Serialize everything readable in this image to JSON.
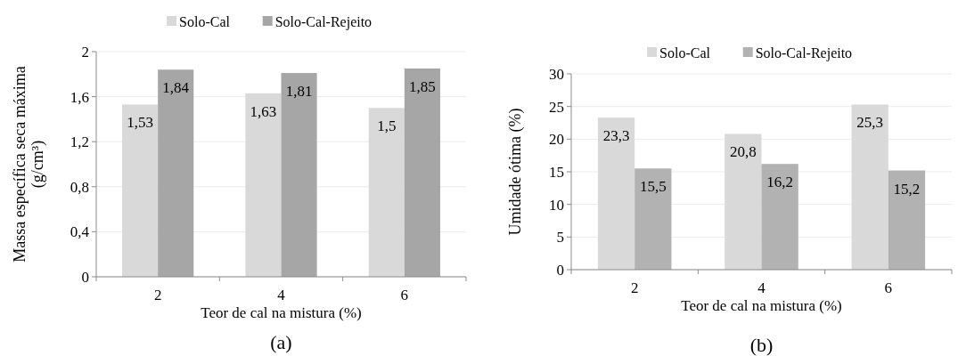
{
  "chart_data": [
    {
      "type": "bar",
      "xlabel": "Teor de cal na mistura (%)",
      "ylabel": "Massa específica seca máxima (g/cm³)",
      "categories": [
        "2",
        "4",
        "6"
      ],
      "series": [
        {
          "name": "Solo-Cal",
          "color": "#d9d9d9",
          "values": [
            1.53,
            1.63,
            1.5
          ],
          "value_labels": [
            "1,53",
            "1,63",
            "1,5"
          ]
        },
        {
          "name": "Solo-Cal-Rejeito",
          "color": "#a6a6a6",
          "values": [
            1.84,
            1.81,
            1.85
          ],
          "value_labels": [
            "1,84",
            "1,81",
            "1,85"
          ]
        }
      ],
      "ylim": [
        0,
        2
      ],
      "yticks": [
        0,
        {
          "value": 0.4,
          "label": "0,4"
        },
        {
          "value": 0.8,
          "label": "0,8"
        },
        {
          "value": 1.2,
          "label": "1,2"
        },
        {
          "value": 1.6,
          "label": "1,6"
        },
        2
      ],
      "grid": "y",
      "legend": "top",
      "annotations": [
        "(a)"
      ]
    },
    {
      "type": "bar",
      "xlabel": "Teor de cal na mistura (%)",
      "ylabel": "Umidade ótima (%)",
      "categories": [
        "2",
        "4",
        "6"
      ],
      "series": [
        {
          "name": "Solo-Cal",
          "color": "#d9d9d9",
          "values": [
            23.3,
            20.8,
            25.3
          ],
          "value_labels": [
            "23,3",
            "20,8",
            "25,3"
          ]
        },
        {
          "name": "Solo-Cal-Rejeito",
          "color": "#b2b2b2",
          "values": [
            15.5,
            16.2,
            15.2
          ],
          "value_labels": [
            "15,5",
            "16,2",
            "15,2"
          ]
        }
      ],
      "ylim": [
        0,
        30
      ],
      "yticks": [
        0,
        5,
        10,
        15,
        20,
        25,
        30
      ],
      "grid": "y",
      "legend": "top",
      "annotations": [
        "(b)"
      ]
    }
  ]
}
